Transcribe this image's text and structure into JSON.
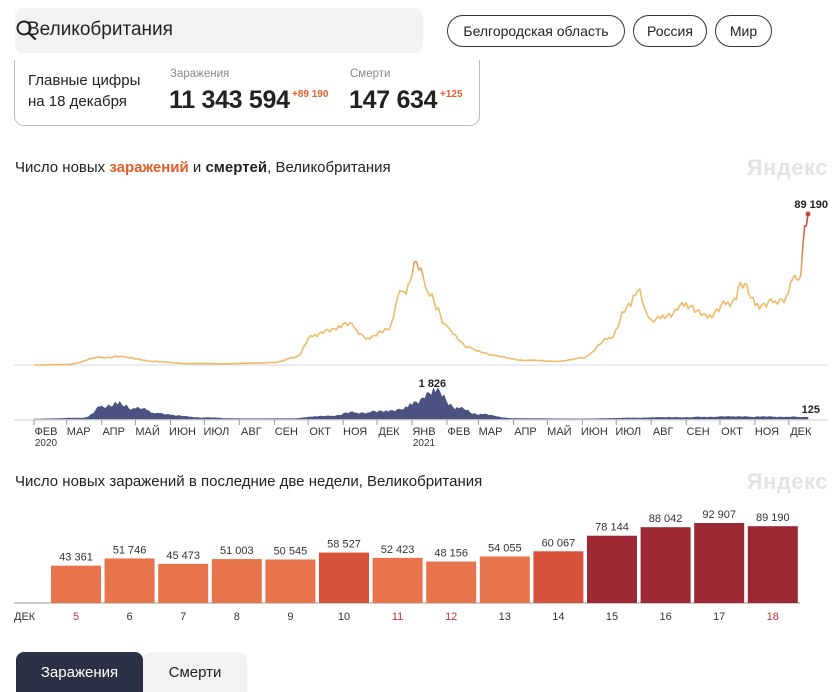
{
  "search": {
    "value": "Великобритания"
  },
  "regions": [
    "Белгородская область",
    "Россия",
    "Мир"
  ],
  "summary": {
    "label_line1": "Главные цифры",
    "label_line2": "на 18 декабря",
    "cases_caption": "Заражения",
    "cases_total": "11 343 594",
    "cases_delta": "+89 190",
    "deaths_caption": "Смерти",
    "deaths_total": "147 634",
    "deaths_delta": "+125"
  },
  "chart1": {
    "title_pre": "Число новых ",
    "title_cases": "заражений",
    "title_mid": " и ",
    "title_deaths": "смертей",
    "title_post": ", Великобритания",
    "watermark": "Яндекс",
    "cases_peak_label": "89 190",
    "deaths_peak_label": "1 826",
    "deaths_last_label": "125"
  },
  "chart2": {
    "title": "Число новых заражений в последние две недели, Великобритания",
    "watermark": "Яндекс",
    "month_label": "ДЕК"
  },
  "colors": {
    "cases_low": "#efbb68",
    "cases_high": "#c6463f",
    "deaths": "#4a5282",
    "bar_light": "#e8744b",
    "bar_mid": "#d9533c",
    "bar_dark": "#9b2833",
    "weekend_text": "#c9302c",
    "accent": "#e35e2b"
  },
  "tabs": [
    "Заражения",
    "Смерти"
  ],
  "chart_data": [
    {
      "type": "line",
      "title": "Число новых заражений и смертей, Великобритания",
      "x_axis": [
        "ФЕВ 2020",
        "МАР",
        "АПР",
        "МАЙ",
        "ИЮН",
        "ИЮЛ",
        "АВГ",
        "СЕН",
        "ОКТ",
        "НОЯ",
        "ДЕК",
        "ЯНВ 2021",
        "ФЕВ",
        "МАР",
        "АПР",
        "МАЙ",
        "ИЮН",
        "ИЮЛ",
        "АВГ",
        "СЕН",
        "ОКТ",
        "НОЯ",
        "ДЕК"
      ],
      "series": [
        {
          "name": "заражений",
          "points": [
            [
              "2020-02-01",
              0
            ],
            [
              "2020-03-01",
              300
            ],
            [
              "2020-04-01",
              4500
            ],
            [
              "2020-04-20",
              4800
            ],
            [
              "2020-05-15",
              2200
            ],
            [
              "2020-06-15",
              900
            ],
            [
              "2020-07-15",
              700
            ],
            [
              "2020-08-15",
              1100
            ],
            [
              "2020-09-01",
              1500
            ],
            [
              "2020-09-20",
              4500
            ],
            [
              "2020-10-05",
              17000
            ],
            [
              "2020-10-20",
              20000
            ],
            [
              "2020-11-05",
              24000
            ],
            [
              "2020-11-25",
              16000
            ],
            [
              "2020-12-10",
              22000
            ],
            [
              "2020-12-25",
              45000
            ],
            [
              "2021-01-05",
              58000
            ],
            [
              "2021-01-15",
              45000
            ],
            [
              "2021-02-01",
              22000
            ],
            [
              "2021-02-20",
              10000
            ],
            [
              "2021-03-15",
              5500
            ],
            [
              "2021-04-10",
              2800
            ],
            [
              "2021-05-10",
              2200
            ],
            [
              "2021-06-01",
              4000
            ],
            [
              "2021-06-25",
              16000
            ],
            [
              "2021-07-12",
              35000
            ],
            [
              "2021-07-20",
              46000
            ],
            [
              "2021-08-01",
              25000
            ],
            [
              "2021-08-15",
              29000
            ],
            [
              "2021-09-01",
              35000
            ],
            [
              "2021-09-20",
              28000
            ],
            [
              "2021-10-10",
              38000
            ],
            [
              "2021-10-21",
              47000
            ],
            [
              "2021-11-05",
              34000
            ],
            [
              "2021-11-25",
              40000
            ],
            [
              "2021-12-10",
              52000
            ],
            [
              "2021-12-15",
              78000
            ],
            [
              "2021-12-18",
              89190
            ]
          ]
        },
        {
          "name": "смертей",
          "points": [
            [
              "2020-02-01",
              0
            ],
            [
              "2020-03-15",
              60
            ],
            [
              "2020-04-05",
              900
            ],
            [
              "2020-04-15",
              1100
            ],
            [
              "2020-05-01",
              650
            ],
            [
              "2020-06-01",
              250
            ],
            [
              "2020-07-01",
              80
            ],
            [
              "2020-08-01",
              15
            ],
            [
              "2020-09-15",
              20
            ],
            [
              "2020-10-15",
              180
            ],
            [
              "2020-11-15",
              450
            ],
            [
              "2020-12-15",
              500
            ],
            [
              "2021-01-05",
              1000
            ],
            [
              "2021-01-20",
              1826
            ],
            [
              "2021-02-10",
              700
            ],
            [
              "2021-03-01",
              300
            ],
            [
              "2021-04-01",
              30
            ],
            [
              "2021-06-01",
              8
            ],
            [
              "2021-07-15",
              60
            ],
            [
              "2021-08-15",
              100
            ],
            [
              "2021-10-15",
              150
            ],
            [
              "2021-11-15",
              140
            ],
            [
              "2021-12-18",
              125
            ]
          ]
        }
      ]
    },
    {
      "type": "bar",
      "title": "Число новых заражений в последние две недели, Великобритания",
      "categories": [
        "5",
        "6",
        "7",
        "8",
        "9",
        "10",
        "11",
        "12",
        "13",
        "14",
        "15",
        "16",
        "17",
        "18"
      ],
      "values": [
        43361,
        51746,
        45473,
        51003,
        50545,
        58527,
        52423,
        48156,
        54055,
        60067,
        78144,
        88042,
        92907,
        89190
      ],
      "value_labels": [
        "43 361",
        "51 746",
        "45 473",
        "51 003",
        "50 545",
        "58 527",
        "52 423",
        "48 156",
        "54 055",
        "60 067",
        "78 144",
        "88 042",
        "92 907",
        "89 190"
      ],
      "weekend": [
        true,
        false,
        false,
        false,
        false,
        false,
        true,
        true,
        false,
        false,
        false,
        false,
        false,
        true
      ],
      "xlabel": "ДЕК"
    }
  ]
}
